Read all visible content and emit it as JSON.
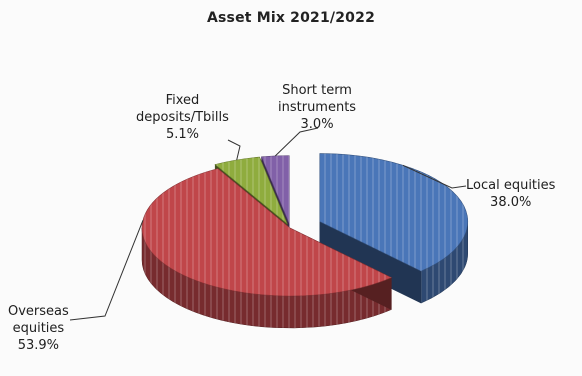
{
  "chart_data": {
    "type": "pie",
    "title": "Asset Mix 2021/2022",
    "three_d": true,
    "exploded": true,
    "legend": "none",
    "slices": [
      {
        "id": "local-equities",
        "label": "Local equities",
        "pct_label": "38.0%",
        "value": 38.0,
        "color": "#4a76b8"
      },
      {
        "id": "overseas-equities",
        "label": "Overseas equities",
        "pct_label": "53.9%",
        "value": 53.9,
        "color": "#c0464a"
      },
      {
        "id": "fixed-deposits",
        "label": "Fixed deposits/Tbills",
        "pct_label": "5.1%",
        "value": 5.1,
        "color": "#8fac3e"
      },
      {
        "id": "short-term",
        "label": "Short term instruments",
        "pct_label": "3.0%",
        "value": 3.0,
        "color": "#8160a8"
      }
    ]
  }
}
